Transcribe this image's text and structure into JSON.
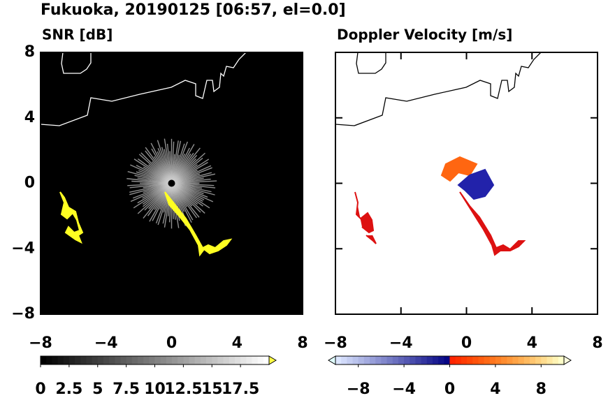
{
  "title": "Fukuoka, 20190125 [06:57, el=0.0]",
  "chart_data": [
    {
      "type": "radar",
      "label": "SNR [dB]",
      "background": "#000000",
      "coast_color": "#ffffff",
      "xlim": [
        -8,
        8
      ],
      "ylim": [
        -8,
        8
      ],
      "xticks": [
        {
          "value": -8,
          "label": "−8"
        },
        {
          "value": -4,
          "label": "−4"
        },
        0,
        4,
        8
      ],
      "yticks": [
        {
          "value": -8,
          "label": "−8"
        },
        {
          "value": -4,
          "label": "−4"
        },
        0,
        4,
        8
      ],
      "colorbar": {
        "clim": [
          0,
          20
        ],
        "ticks": [
          0,
          2.5,
          5,
          7.5,
          10,
          12.5,
          15,
          17.5
        ]
      }
    },
    {
      "type": "radar",
      "label": "Doppler Velocity [m/s]",
      "background": "#ffffff",
      "coast_color": "#000000",
      "xlim": [
        -8,
        8
      ],
      "ylim": [
        -8,
        8
      ],
      "xticks": [
        {
          "value": -8,
          "label": "−8"
        },
        {
          "value": -4,
          "label": "−4"
        },
        0,
        4,
        8
      ],
      "colorbar": {
        "clim": [
          -10,
          10
        ],
        "ticks": [
          {
            "value": -8,
            "label": "−8"
          },
          {
            "value": -4,
            "label": "−4"
          },
          0,
          4,
          8
        ]
      }
    }
  ]
}
